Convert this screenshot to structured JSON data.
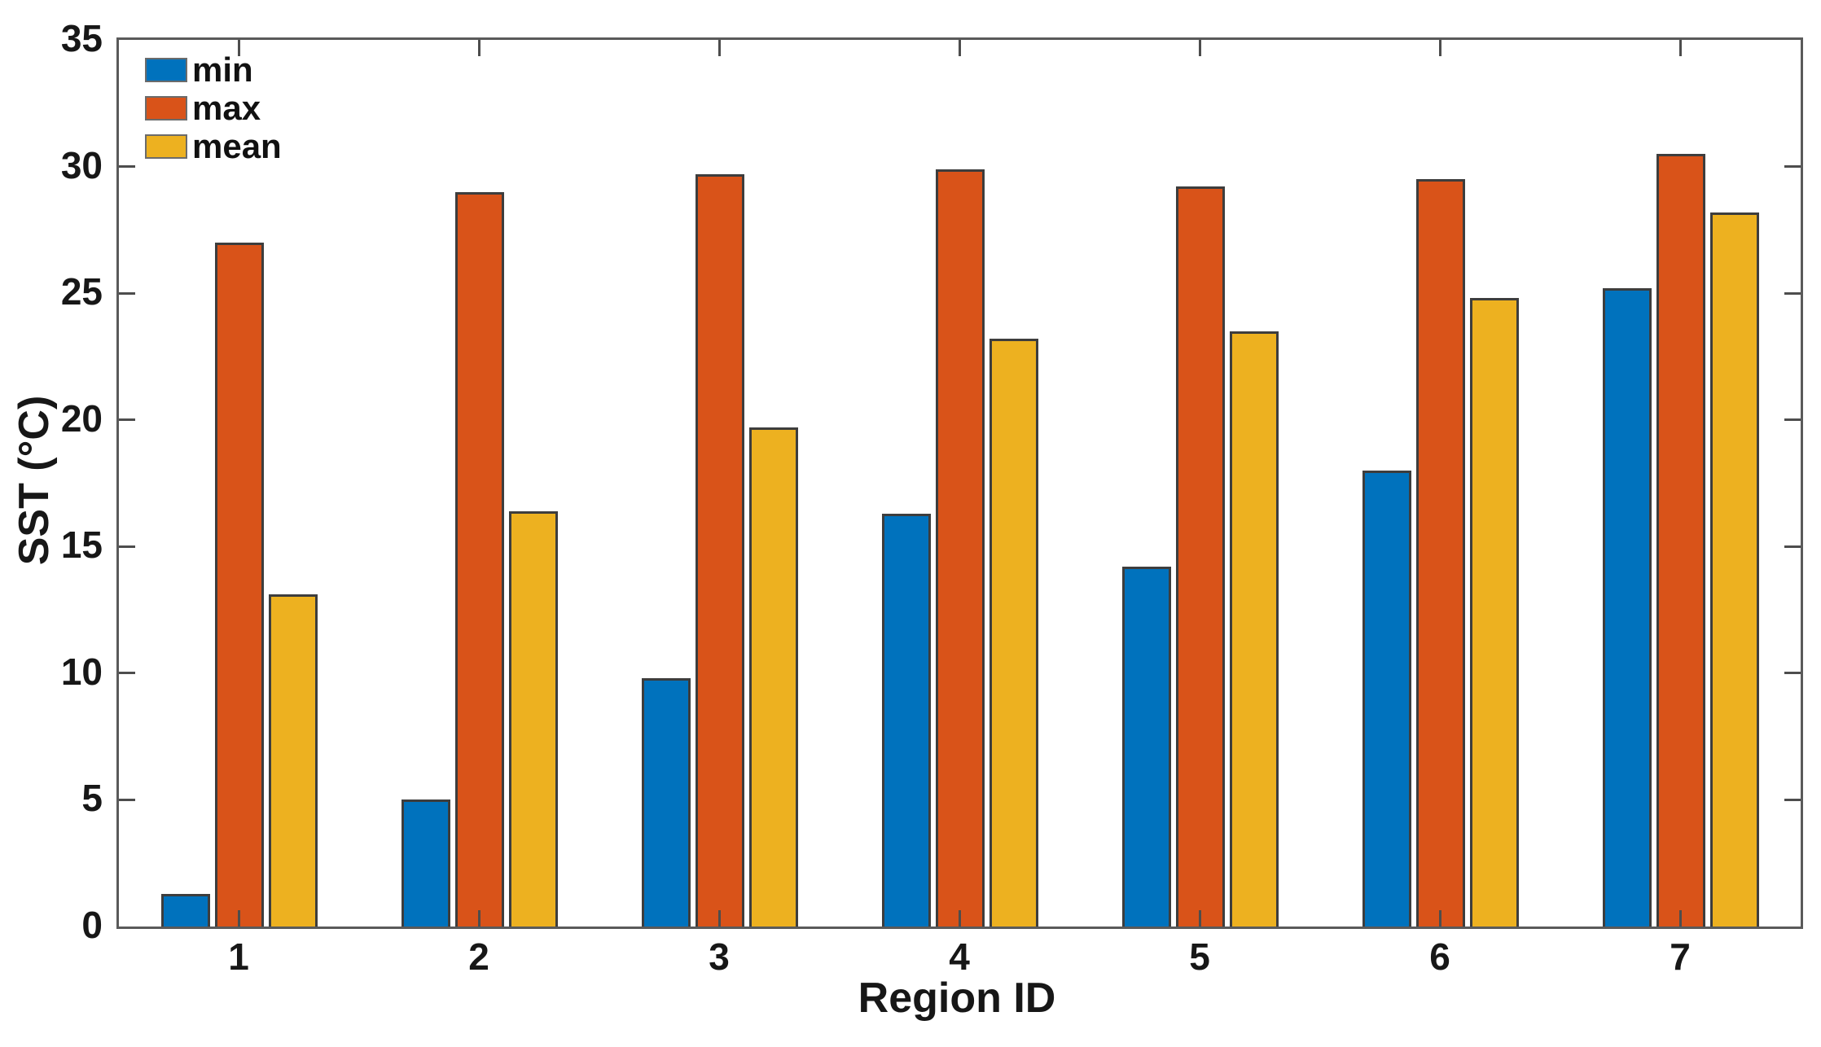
{
  "chart_data": {
    "type": "bar",
    "title": "",
    "xlabel": "Region ID",
    "ylabel": "SST (°C)",
    "categories": [
      "1",
      "2",
      "3",
      "4",
      "5",
      "6",
      "7"
    ],
    "series": [
      {
        "name": "min",
        "color": "#0072BD",
        "values": [
          1.3,
          5.0,
          9.8,
          16.3,
          14.2,
          18.0,
          25.2
        ]
      },
      {
        "name": "max",
        "color": "#D95319",
        "values": [
          27.0,
          29.0,
          29.7,
          29.9,
          29.2,
          29.5,
          30.5
        ]
      },
      {
        "name": "mean",
        "color": "#EDB120",
        "values": [
          13.1,
          16.4,
          19.7,
          23.2,
          23.5,
          24.8,
          28.2
        ]
      }
    ],
    "ylim": [
      0,
      35
    ],
    "yticks": [
      0,
      5,
      10,
      15,
      20,
      25,
      30,
      35
    ],
    "grid": false,
    "legend_position": "top-left",
    "bar_edge_color": "#3d3d3d",
    "axis_color": "#5a5a5a",
    "text_color": "#171717",
    "background_color": "#ffffff"
  }
}
